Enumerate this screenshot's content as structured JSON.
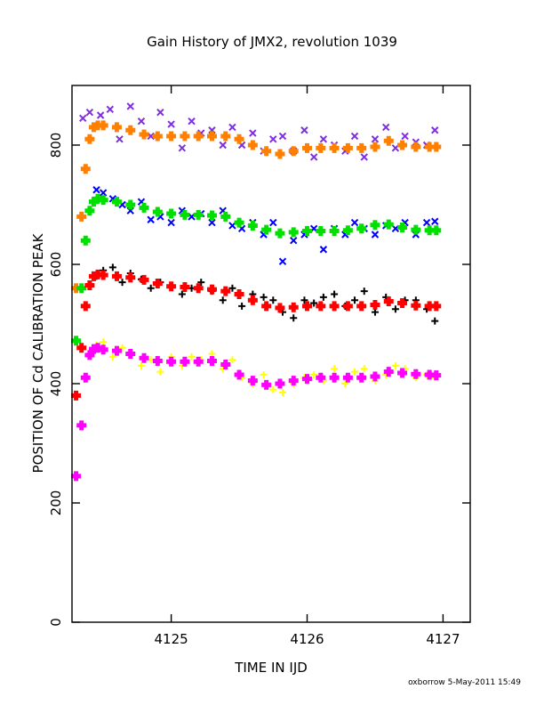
{
  "chart_data": {
    "type": "scatter",
    "title": "Gain History of JMX2, revolution 1039",
    "xlabel": "TIME IN IJD",
    "ylabel": "POSITION OF Cd CALIBRATION PEAK",
    "xlim": [
      4124.27,
      4127.2
    ],
    "ylim": [
      0,
      900
    ],
    "x_ticks": [
      4125,
      4126,
      4127
    ],
    "x_tick_labels": [
      "4125",
      "4126",
      "4127"
    ],
    "y_ticks": [
      0,
      200,
      400,
      600,
      800
    ],
    "y_tick_labels": [
      "0",
      "200",
      "400",
      "600",
      "800"
    ],
    "grid": false,
    "legend": "none",
    "footer": "oxborrow  5-May-2011 15:49",
    "series": [
      {
        "color": "#7f2fe0",
        "marker": "x",
        "kind": "raw",
        "x": [
          4124.35,
          4124.4,
          4124.48,
          4124.55,
          4124.62,
          4124.7,
          4124.78,
          4124.85,
          4124.92,
          4125.0,
          4125.08,
          4125.15,
          4125.22,
          4125.3,
          4125.38,
          4125.45,
          4125.52,
          4125.6,
          4125.68,
          4125.75,
          4125.82,
          4125.9,
          4125.98,
          4126.05,
          4126.12,
          4126.2,
          4126.28,
          4126.35,
          4126.42,
          4126.5,
          4126.58,
          4126.65,
          4126.72,
          4126.8,
          4126.88,
          4126.94
        ],
        "y": [
          845,
          855,
          850,
          860,
          810,
          865,
          840,
          815,
          855,
          835,
          795,
          840,
          820,
          825,
          800,
          830,
          800,
          820,
          790,
          810,
          815,
          790,
          825,
          780,
          810,
          800,
          790,
          815,
          780,
          810,
          830,
          795,
          815,
          805,
          800,
          825
        ]
      },
      {
        "color": "#ff8000",
        "marker": "+",
        "kind": "fit",
        "x": [
          4124.3,
          4124.34,
          4124.37,
          4124.4,
          4124.43,
          4124.46,
          4124.5,
          4124.6,
          4124.7,
          4124.8,
          4124.9,
          4125.0,
          4125.1,
          4125.2,
          4125.3,
          4125.4,
          4125.5,
          4125.6,
          4125.7,
          4125.8,
          4125.9,
          4126.0,
          4126.1,
          4126.2,
          4126.3,
          4126.4,
          4126.5,
          4126.6,
          4126.7,
          4126.8,
          4126.9,
          4126.95
        ],
        "y": [
          560,
          680,
          760,
          810,
          830,
          833,
          833,
          830,
          825,
          818,
          815,
          815,
          815,
          815,
          815,
          815,
          810,
          800,
          790,
          785,
          790,
          795,
          795,
          795,
          795,
          795,
          797,
          807,
          800,
          797,
          797,
          797
        ]
      },
      {
        "color": "#0000ff",
        "marker": "x",
        "kind": "raw",
        "x": [
          4124.45,
          4124.5,
          4124.57,
          4124.64,
          4124.7,
          4124.78,
          4124.85,
          4124.92,
          4125.0,
          4125.08,
          4125.15,
          4125.22,
          4125.3,
          4125.38,
          4125.45,
          4125.52,
          4125.6,
          4125.68,
          4125.75,
          4125.82,
          4125.9,
          4125.98,
          4126.05,
          4126.12,
          4126.2,
          4126.28,
          4126.35,
          4126.42,
          4126.5,
          4126.58,
          4126.65,
          4126.72,
          4126.8,
          4126.88,
          4126.94
        ],
        "y": [
          725,
          720,
          710,
          700,
          690,
          705,
          675,
          680,
          670,
          690,
          680,
          685,
          670,
          690,
          665,
          660,
          670,
          650,
          670,
          605,
          640,
          650,
          660,
          625,
          660,
          650,
          670,
          660,
          650,
          665,
          660,
          670,
          650,
          670,
          672
        ]
      },
      {
        "color": "#00e000",
        "marker": "+",
        "kind": "fit",
        "x": [
          4124.3,
          4124.34,
          4124.37,
          4124.4,
          4124.43,
          4124.46,
          4124.5,
          4124.6,
          4124.7,
          4124.8,
          4124.9,
          4125.0,
          4125.1,
          4125.2,
          4125.3,
          4125.4,
          4125.5,
          4125.6,
          4125.7,
          4125.8,
          4125.9,
          4126.0,
          4126.1,
          4126.2,
          4126.3,
          4126.4,
          4126.5,
          4126.6,
          4126.7,
          4126.8,
          4126.9,
          4126.95
        ],
        "y": [
          472,
          560,
          640,
          690,
          705,
          710,
          708,
          705,
          700,
          695,
          688,
          685,
          683,
          683,
          682,
          680,
          670,
          665,
          658,
          652,
          654,
          656,
          656,
          656,
          657,
          660,
          666,
          667,
          662,
          658,
          657,
          657
        ]
      },
      {
        "color": "#000000",
        "marker": "+",
        "kind": "raw",
        "x": [
          4124.45,
          4124.5,
          4124.57,
          4124.64,
          4124.7,
          4124.78,
          4124.85,
          4124.92,
          4125.0,
          4125.08,
          4125.15,
          4125.22,
          4125.3,
          4125.38,
          4125.45,
          4125.52,
          4125.6,
          4125.68,
          4125.75,
          4125.82,
          4125.9,
          4125.98,
          4126.05,
          4126.12,
          4126.2,
          4126.28,
          4126.35,
          4126.42,
          4126.5,
          4126.58,
          4126.65,
          4126.72,
          4126.8,
          4126.88,
          4126.94
        ],
        "y": [
          580,
          590,
          595,
          570,
          585,
          575,
          560,
          570,
          565,
          550,
          560,
          570,
          555,
          540,
          560,
          530,
          550,
          545,
          540,
          520,
          510,
          540,
          535,
          545,
          550,
          530,
          540,
          555,
          520,
          545,
          525,
          540,
          540,
          525,
          505
        ]
      },
      {
        "color": "#ff0000",
        "marker": "+",
        "kind": "fit",
        "x": [
          4124.3,
          4124.34,
          4124.37,
          4124.4,
          4124.43,
          4124.46,
          4124.5,
          4124.6,
          4124.7,
          4124.8,
          4124.9,
          4125.0,
          4125.1,
          4125.2,
          4125.3,
          4125.4,
          4125.5,
          4125.6,
          4125.7,
          4125.8,
          4125.9,
          4126.0,
          4126.1,
          4126.2,
          4126.3,
          4126.4,
          4126.5,
          4126.6,
          4126.7,
          4126.8,
          4126.9,
          4126.95
        ],
        "y": [
          380,
          460,
          530,
          565,
          580,
          583,
          582,
          580,
          578,
          574,
          568,
          563,
          562,
          560,
          558,
          555,
          550,
          540,
          530,
          527,
          528,
          530,
          530,
          530,
          530,
          530,
          532,
          538,
          535,
          531,
          530,
          530
        ]
      },
      {
        "color": "#ffff00",
        "marker": "+",
        "kind": "raw",
        "x": [
          4124.45,
          4124.5,
          4124.57,
          4124.64,
          4124.7,
          4124.78,
          4124.85,
          4124.92,
          4125.0,
          4125.08,
          4125.15,
          4125.22,
          4125.3,
          4125.38,
          4125.45,
          4125.52,
          4125.6,
          4125.68,
          4125.75,
          4125.82,
          4125.9,
          4125.98,
          4126.05,
          4126.12,
          4126.2,
          4126.28,
          4126.35,
          4126.42,
          4126.5,
          4126.58,
          4126.65,
          4126.72,
          4126.8,
          4126.88,
          4126.94
        ],
        "y": [
          465,
          470,
          445,
          460,
          450,
          430,
          440,
          420,
          445,
          430,
          445,
          440,
          450,
          425,
          440,
          410,
          400,
          415,
          390,
          385,
          400,
          410,
          415,
          405,
          425,
          400,
          420,
          425,
          405,
          415,
          430,
          425,
          410,
          415,
          410
        ]
      },
      {
        "color": "#ff00ff",
        "marker": "+",
        "kind": "fit",
        "x": [
          4124.3,
          4124.34,
          4124.37,
          4124.4,
          4124.43,
          4124.46,
          4124.5,
          4124.6,
          4124.7,
          4124.8,
          4124.9,
          4125.0,
          4125.1,
          4125.2,
          4125.3,
          4125.4,
          4125.5,
          4125.6,
          4125.7,
          4125.8,
          4125.9,
          4126.0,
          4126.1,
          4126.2,
          4126.3,
          4126.4,
          4126.5,
          4126.6,
          4126.7,
          4126.8,
          4126.9,
          4126.95
        ],
        "y": [
          245,
          330,
          410,
          448,
          458,
          460,
          457,
          455,
          450,
          443,
          438,
          437,
          437,
          437,
          438,
          432,
          415,
          405,
          398,
          400,
          405,
          408,
          410,
          410,
          410,
          410,
          412,
          420,
          418,
          416,
          415,
          414
        ]
      }
    ]
  }
}
